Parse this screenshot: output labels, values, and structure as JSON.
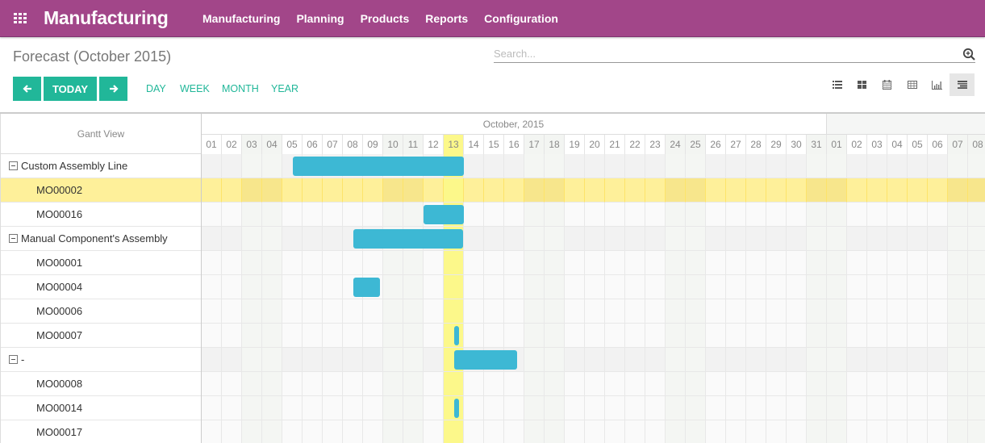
{
  "app": {
    "name": "Manufacturing",
    "apps_icon": "grid-icon",
    "menu": [
      "Manufacturing",
      "Planning",
      "Products",
      "Reports",
      "Configuration"
    ]
  },
  "page": {
    "title": "Forecast (October 2015)",
    "search_placeholder": "Search...",
    "search_icon": "zoom-plus-icon"
  },
  "controls": {
    "prev_icon": "arrow-left-icon",
    "today_label": "TODAY",
    "next_icon": "arrow-right-icon",
    "scales": [
      "DAY",
      "WEEK",
      "MONTH",
      "YEAR"
    ],
    "views": [
      {
        "name": "list-view",
        "icon": "list-icon",
        "active": false
      },
      {
        "name": "kanban-view",
        "icon": "kanban-icon",
        "active": false
      },
      {
        "name": "calendar-view",
        "icon": "calendar-icon",
        "active": false
      },
      {
        "name": "pivot-view",
        "icon": "table-icon",
        "active": false
      },
      {
        "name": "graph-view",
        "icon": "bar-chart-icon",
        "active": false
      },
      {
        "name": "gantt-view",
        "icon": "gantt-icon",
        "active": true
      }
    ]
  },
  "gantt": {
    "header_label": "Gantt View",
    "month_label": "October, 2015",
    "days": [
      "01",
      "02",
      "03",
      "04",
      "05",
      "06",
      "07",
      "08",
      "09",
      "10",
      "11",
      "12",
      "13",
      "14",
      "15",
      "16",
      "17",
      "18",
      "19",
      "20",
      "21",
      "22",
      "23",
      "24",
      "25",
      "26",
      "27",
      "28",
      "29",
      "30",
      "31",
      "01",
      "02",
      "03",
      "04",
      "05",
      "06",
      "07",
      "08"
    ],
    "weekend_indices": [
      2,
      3,
      9,
      10,
      16,
      17,
      23,
      24,
      30,
      31,
      37,
      38
    ],
    "today_index": 12,
    "rows": [
      {
        "label": "Custom Assembly Line",
        "type": "group",
        "bar": {
          "start": 4.5,
          "end": 13
        }
      },
      {
        "label": "MO00002",
        "type": "child",
        "selected": true
      },
      {
        "label": "MO00016",
        "type": "child",
        "bar": {
          "start": 11,
          "end": 13
        }
      },
      {
        "label": "Manual Component's Assembly",
        "type": "group",
        "bar": {
          "start": 7.5,
          "end": 12.95
        }
      },
      {
        "label": "MO00001",
        "type": "child"
      },
      {
        "label": "MO00004",
        "type": "child",
        "bar": {
          "start": 7.5,
          "end": 8.85
        }
      },
      {
        "label": "MO00006",
        "type": "child"
      },
      {
        "label": "MO00007",
        "type": "child",
        "bar": {
          "start": 12.5,
          "end": 12.75
        }
      },
      {
        "label": "-",
        "type": "group",
        "bar": {
          "start": 12.5,
          "end": 15.65
        }
      },
      {
        "label": "MO00008",
        "type": "child"
      },
      {
        "label": "MO00014",
        "type": "child",
        "bar": {
          "start": 12.5,
          "end": 12.75
        }
      },
      {
        "label": "MO00017",
        "type": "child"
      }
    ],
    "colors": {
      "bar": "#3db8d4",
      "today": "#fcf88a",
      "selected_row": "#fef09a",
      "brand": "#a24689",
      "accent": "#21b799"
    }
  }
}
